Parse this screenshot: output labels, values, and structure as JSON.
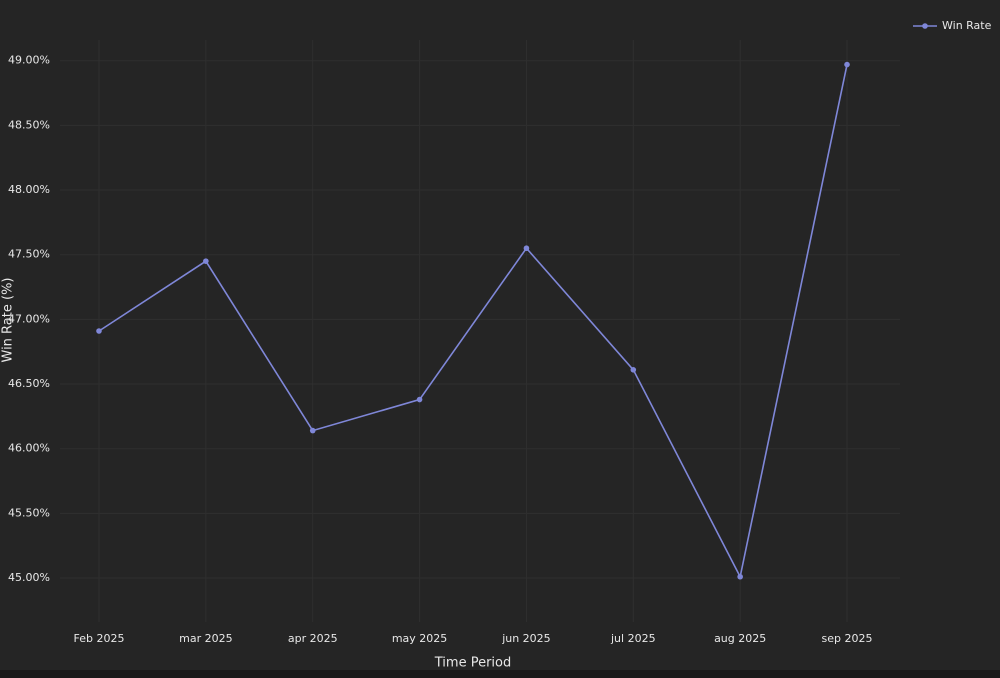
{
  "chart_data": {
    "type": "line",
    "x_label": "Time Period",
    "y_label": "Win Rate (%)",
    "categories": [
      "Feb 2025",
      "mar 2025",
      "apr 2025",
      "may 2025",
      "jun 2025",
      "jul 2025",
      "aug 2025",
      "sep 2025"
    ],
    "series": [
      {
        "name": "Win Rate",
        "color": "#7f87d8",
        "values": [
          46.91,
          47.45,
          46.14,
          46.38,
          47.55,
          46.61,
          45.01,
          48.97
        ]
      }
    ],
    "ylim": [
      44.66,
      49.16
    ],
    "yticks": [
      {
        "value": 45,
        "label": "45.00%"
      },
      {
        "value": 45.5,
        "label": "45.50%"
      },
      {
        "value": 46,
        "label": "46.00%"
      },
      {
        "value": 46.5,
        "label": "46.50%"
      },
      {
        "value": 47,
        "label": "47.00%"
      },
      {
        "value": 47.5,
        "label": "47.50%"
      },
      {
        "value": 48,
        "label": "48.00%"
      },
      {
        "value": 48.5,
        "label": "48.50%"
      },
      {
        "value": 49,
        "label": "49.00%"
      }
    ],
    "grid": true,
    "legend": "top-right"
  }
}
